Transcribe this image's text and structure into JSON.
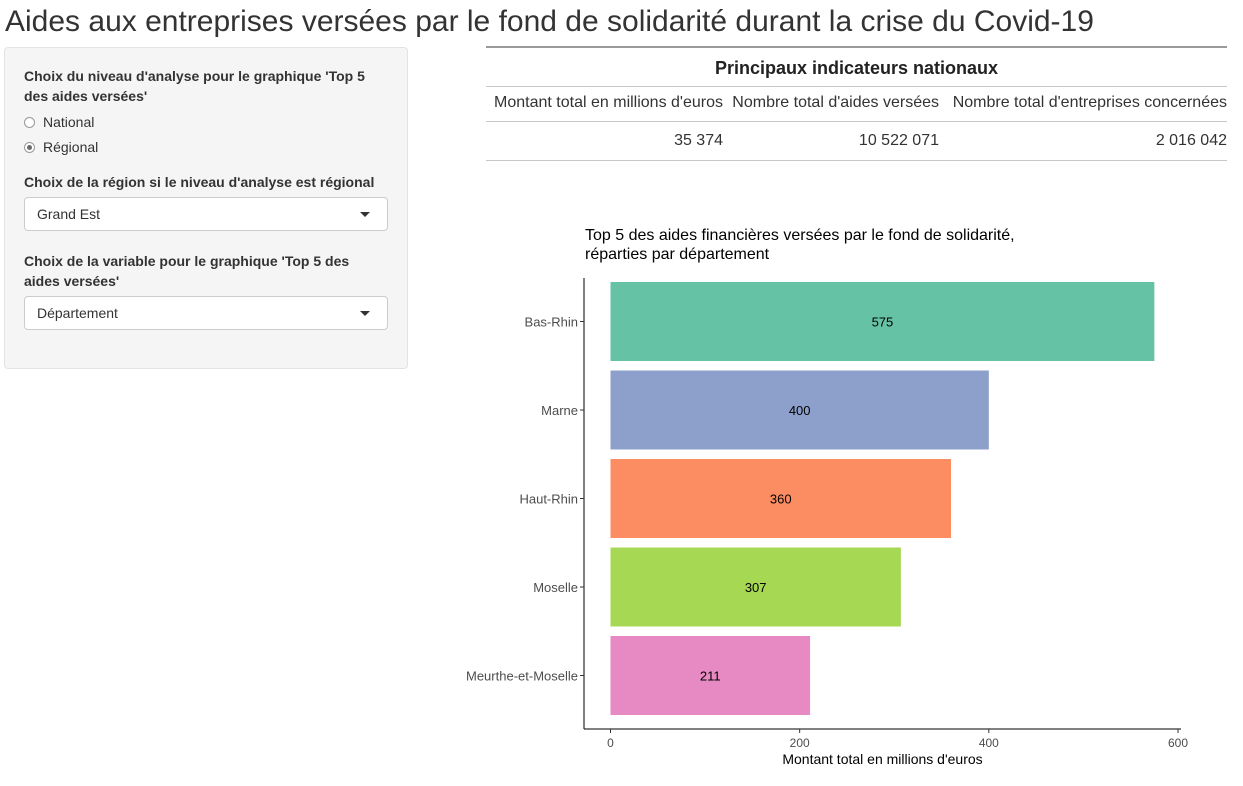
{
  "page": {
    "title": "Aides aux entreprises versées par le fond de solidarité durant la crise du Covid-19"
  },
  "sidebar": {
    "level_label": "Choix du niveau d'analyse pour le graphique 'Top 5 des aides versées'",
    "level_options": [
      {
        "label": "National",
        "checked": false
      },
      {
        "label": "Régional",
        "checked": true
      }
    ],
    "region_label": "Choix de la région si le niveau d'analyse est régional",
    "region_value": "Grand Est",
    "variable_label": "Choix de la variable pour le graphique 'Top 5 des aides versées'",
    "variable_value": "Département"
  },
  "indicators": {
    "caption": "Principaux indicateurs nationaux",
    "headers": [
      "Montant total en millions d'euros",
      "Nombre total d'aides versées",
      "Nombre total d'entreprises concernées"
    ],
    "values": [
      "35 374",
      "10 522 071",
      "2 016 042"
    ]
  },
  "chart_data": {
    "type": "bar",
    "orientation": "horizontal",
    "title": "Top 5 des aides financières versées par le fond de solidarité, réparties par département",
    "categories": [
      "Bas-Rhin",
      "Marne",
      "Haut-Rhin",
      "Moselle",
      "Meurthe-et-Moselle"
    ],
    "values": [
      575,
      400,
      360,
      307,
      211
    ],
    "data_labels": [
      "575",
      "400",
      "360",
      "307",
      "211"
    ],
    "colors": [
      "#66c2a5",
      "#8da0cb",
      "#fc8d62",
      "#a6d854",
      "#e78ac3"
    ],
    "xlabel": "Montant total en millions d'euros",
    "ylabel": "",
    "xlim": [
      0,
      600
    ],
    "xticks": [
      0,
      200,
      400,
      600
    ],
    "grid": false,
    "legend": "none"
  }
}
